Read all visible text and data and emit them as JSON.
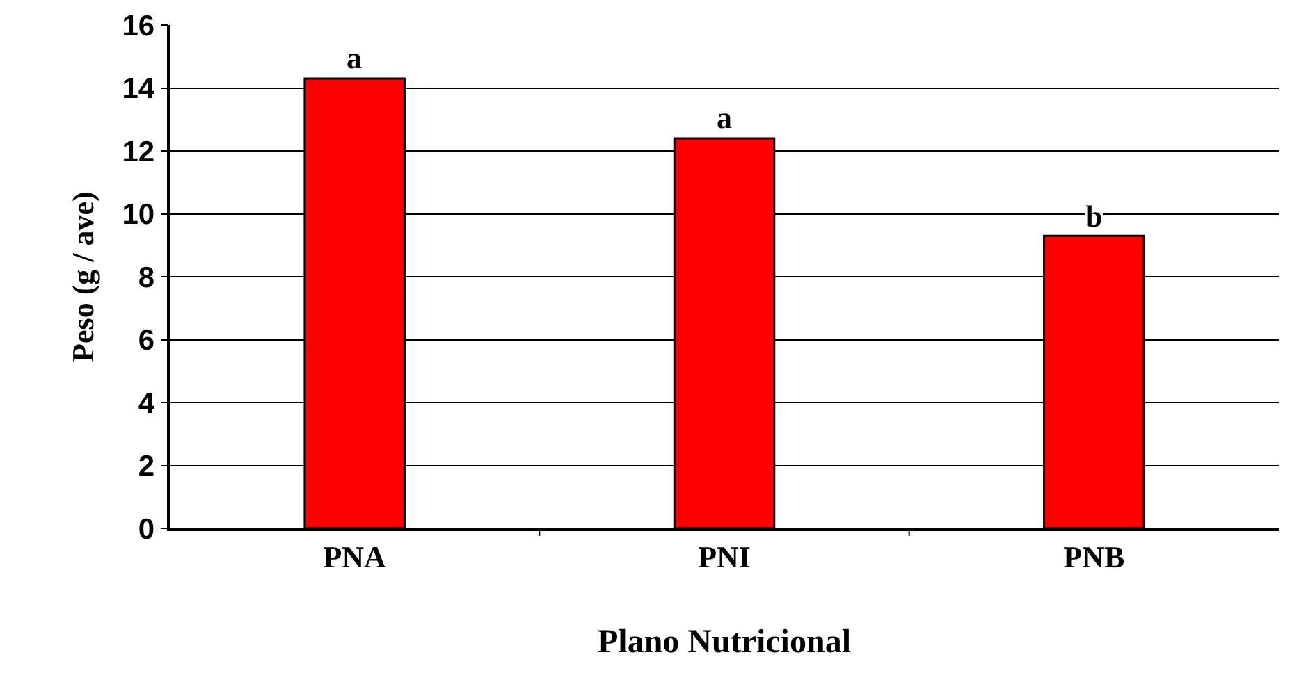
{
  "chart_data": {
    "type": "bar",
    "xlabel": "Plano Nutricional",
    "ylabel": "Peso (g / ave)",
    "categories": [
      "PNA",
      "PNI",
      "PNB"
    ],
    "values": [
      14.3,
      12.4,
      9.3
    ],
    "color": "#ff0000",
    "ylim": [
      0,
      16
    ],
    "yticks": [
      0,
      2,
      4,
      6,
      8,
      10,
      12,
      14,
      16
    ],
    "grid": "y",
    "annotations": [
      {
        "text": "a",
        "x": "PNA",
        "y": 14.3
      },
      {
        "text": "a",
        "x": "PNI",
        "y": 12.4
      },
      {
        "text": "b",
        "x": "PNB",
        "y": 9.3
      }
    ]
  }
}
